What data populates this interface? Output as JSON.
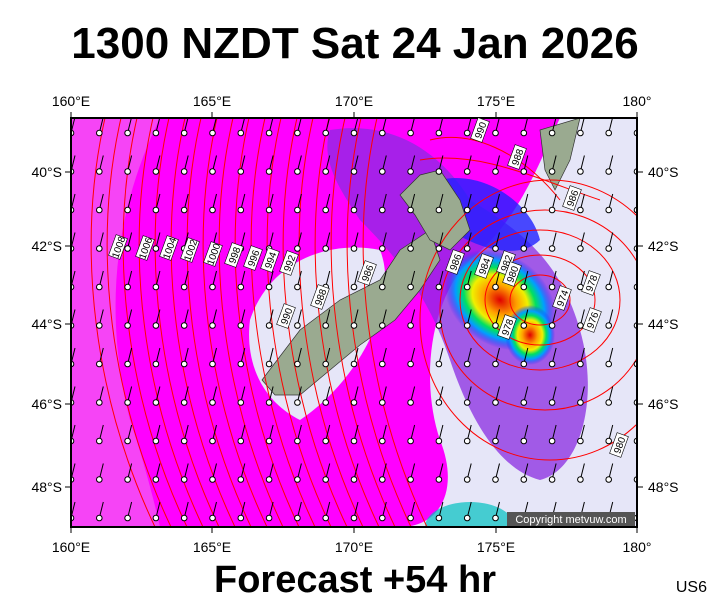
{
  "header": {
    "title": "1300 NZDT Sat 24 Jan 2026"
  },
  "map": {
    "lon_labels": [
      "160°E",
      "165°E",
      "170°E",
      "175°E",
      "180°"
    ],
    "lat_labels": [
      "40°S",
      "42°S",
      "44°S",
      "46°S",
      "48°S"
    ],
    "isobar_labels": [
      "990",
      "988",
      "986",
      "1008",
      "1006",
      "1004",
      "1002",
      "1000",
      "998",
      "996",
      "994",
      "992",
      "988",
      "986",
      "990",
      "986",
      "984",
      "982",
      "980",
      "978",
      "974",
      "976",
      "978",
      "980"
    ],
    "copyright": "Copyright metvuw.com"
  },
  "footer": {
    "forecast": "Forecast +54 hr",
    "code": "US6"
  }
}
